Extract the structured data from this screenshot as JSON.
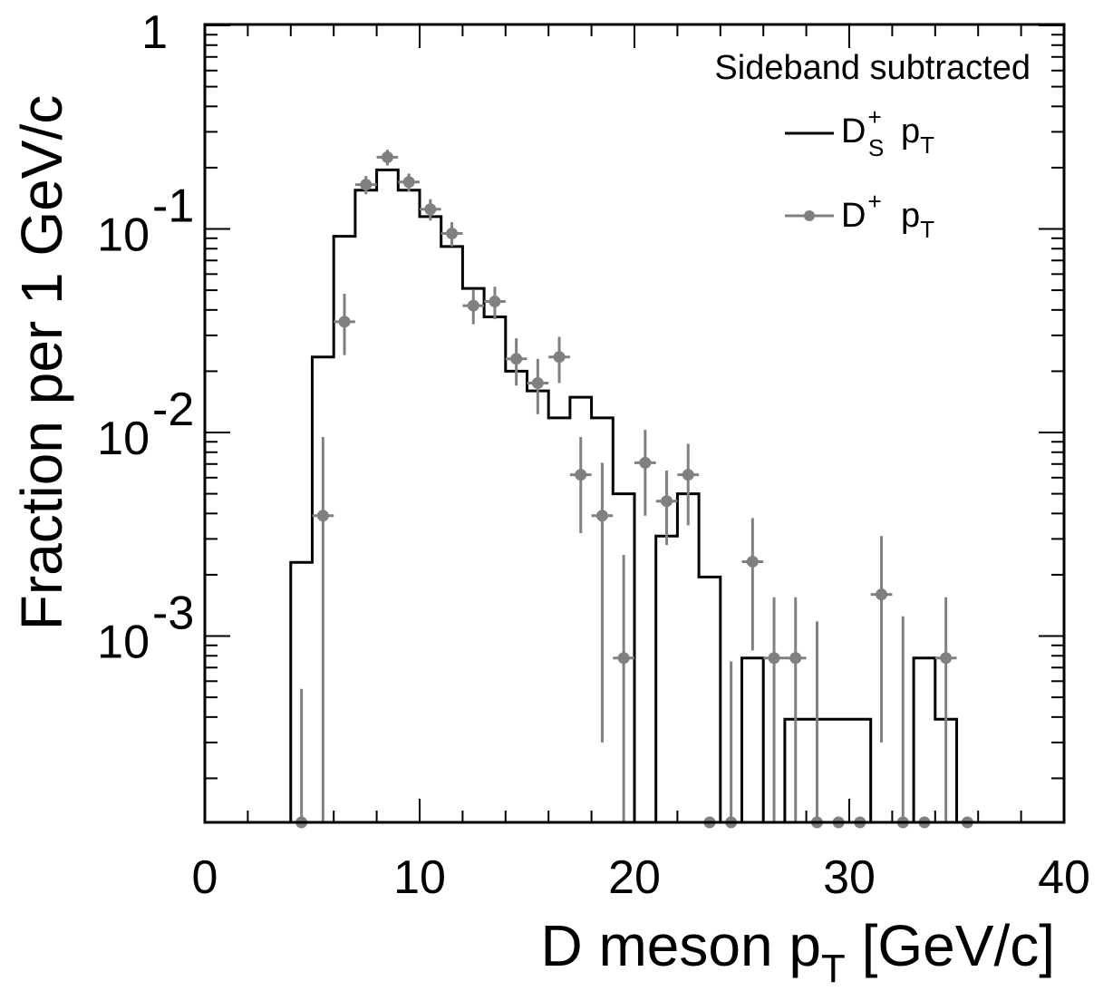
{
  "chart_data": {
    "type": "histogram+scatter",
    "xlabel_main": "D meson p",
    "xlabel_sub": "T",
    "xlabel_unit": " [GeV/c]",
    "ylabel": "Fraction per 1 GeV/c",
    "xlim": [
      0,
      40
    ],
    "ylim": [
      0.00012,
      1
    ],
    "yscale": "log",
    "x_ticks": [
      "0",
      "10",
      "20",
      "30",
      "40"
    ],
    "y_ticks": [
      {
        "value": 1,
        "base": "1",
        "exp": ""
      },
      {
        "value": 0.1,
        "base": "10",
        "exp": "-1"
      },
      {
        "value": 0.01,
        "base": "10",
        "exp": "-2"
      },
      {
        "value": 0.001,
        "base": "10",
        "exp": "-3"
      }
    ],
    "legend": {
      "header": "Sideband subtracted",
      "placement": "top-right",
      "entries": [
        {
          "base": "D",
          "sup": "+",
          "sub": "S",
          "tail": "p",
          "tail_sub": "T",
          "style": "line"
        },
        {
          "base": "D",
          "sup": "+",
          "sub": "",
          "tail": "p",
          "tail_sub": "T",
          "style": "marker"
        }
      ]
    },
    "series": [
      {
        "style": "histogram",
        "color": "#000000",
        "bins": [
          {
            "x0": 4,
            "x1": 5,
            "y": 0.0023
          },
          {
            "x0": 5,
            "x1": 6,
            "y": 0.0235
          },
          {
            "x0": 6,
            "x1": 7,
            "y": 0.092
          },
          {
            "x0": 7,
            "x1": 8,
            "y": 0.155
          },
          {
            "x0": 8,
            "x1": 9,
            "y": 0.195
          },
          {
            "x0": 9,
            "x1": 10,
            "y": 0.155
          },
          {
            "x0": 10,
            "x1": 11,
            "y": 0.115
          },
          {
            "x0": 11,
            "x1": 12,
            "y": 0.082
          },
          {
            "x0": 12,
            "x1": 13,
            "y": 0.051
          },
          {
            "x0": 13,
            "x1": 14,
            "y": 0.037
          },
          {
            "x0": 14,
            "x1": 15,
            "y": 0.02
          },
          {
            "x0": 15,
            "x1": 16,
            "y": 0.016
          },
          {
            "x0": 16,
            "x1": 17,
            "y": 0.0118
          },
          {
            "x0": 17,
            "x1": 18,
            "y": 0.0149
          },
          {
            "x0": 18,
            "x1": 19,
            "y": 0.0118
          },
          {
            "x0": 19,
            "x1": 20,
            "y": 0.005
          },
          {
            "x0": 20,
            "x1": 21,
            "y": 0
          },
          {
            "x0": 21,
            "x1": 22,
            "y": 0.0031
          },
          {
            "x0": 22,
            "x1": 23,
            "y": 0.005
          },
          {
            "x0": 23,
            "x1": 24,
            "y": 0.00195
          },
          {
            "x0": 24,
            "x1": 25,
            "y": 0
          },
          {
            "x0": 25,
            "x1": 26,
            "y": 0.00078
          },
          {
            "x0": 26,
            "x1": 27,
            "y": 0
          },
          {
            "x0": 27,
            "x1": 31,
            "y": 0.00039
          },
          {
            "x0": 31,
            "x1": 33,
            "y": 0
          },
          {
            "x0": 33,
            "x1": 34,
            "y": 0.00078
          },
          {
            "x0": 34,
            "x1": 35,
            "y": 0.00039
          },
          {
            "x0": 35,
            "x1": 36,
            "y": 0
          }
        ]
      },
      {
        "style": "points",
        "color": "#808080",
        "points": [
          {
            "x": 4.5,
            "y": 0,
            "ylo": 0,
            "yhi": 0.00055
          },
          {
            "x": 5.5,
            "y": 0.0039,
            "ylo": 0,
            "yhi": 0.0095
          },
          {
            "x": 6.5,
            "y": 0.035,
            "ylo": 0.024,
            "yhi": 0.048
          },
          {
            "x": 7.5,
            "y": 0.165,
            "ylo": 0.148,
            "yhi": 0.182
          },
          {
            "x": 8.5,
            "y": 0.225,
            "ylo": 0.205,
            "yhi": 0.245
          },
          {
            "x": 9.5,
            "y": 0.17,
            "ylo": 0.153,
            "yhi": 0.187
          },
          {
            "x": 10.5,
            "y": 0.125,
            "ylo": 0.11,
            "yhi": 0.14
          },
          {
            "x": 11.5,
            "y": 0.095,
            "ylo": 0.082,
            "yhi": 0.108
          },
          {
            "x": 12.5,
            "y": 0.042,
            "ylo": 0.034,
            "yhi": 0.05
          },
          {
            "x": 13.5,
            "y": 0.044,
            "ylo": 0.036,
            "yhi": 0.052
          },
          {
            "x": 14.5,
            "y": 0.023,
            "ylo": 0.017,
            "yhi": 0.029
          },
          {
            "x": 15.5,
            "y": 0.0175,
            "ylo": 0.0123,
            "yhi": 0.023
          },
          {
            "x": 16.5,
            "y": 0.0235,
            "ylo": 0.0175,
            "yhi": 0.0295
          },
          {
            "x": 17.5,
            "y": 0.0062,
            "ylo": 0.0032,
            "yhi": 0.0095
          },
          {
            "x": 18.5,
            "y": 0.0039,
            "ylo": 0.0003,
            "yhi": 0.0071
          },
          {
            "x": 19.5,
            "y": 0.00078,
            "ylo": 0,
            "yhi": 0.0025
          },
          {
            "x": 20.5,
            "y": 0.0071,
            "ylo": 0.0039,
            "yhi": 0.0103
          },
          {
            "x": 21.5,
            "y": 0.0046,
            "ylo": 0.0028,
            "yhi": 0.0065
          },
          {
            "x": 22.5,
            "y": 0.0062,
            "ylo": 0.0035,
            "yhi": 0.0088
          },
          {
            "x": 23.5,
            "y": 0,
            "ylo": 0,
            "yhi": 0
          },
          {
            "x": 24.5,
            "y": 0,
            "ylo": 0,
            "yhi": 0.00075
          },
          {
            "x": 25.5,
            "y": 0.00232,
            "ylo": 0.00085,
            "yhi": 0.0038
          },
          {
            "x": 26.5,
            "y": 0.00078,
            "ylo": 0,
            "yhi": 0.00155
          },
          {
            "x": 27.5,
            "y": 0.00078,
            "ylo": 0,
            "yhi": 0.00155
          },
          {
            "x": 28.5,
            "y": 0,
            "ylo": 0,
            "yhi": 0.00118
          },
          {
            "x": 29.5,
            "y": 0,
            "ylo": 0,
            "yhi": 0
          },
          {
            "x": 30.5,
            "y": 0,
            "ylo": 0,
            "yhi": 0
          },
          {
            "x": 31.5,
            "y": 0.0016,
            "ylo": 0.0003,
            "yhi": 0.0031
          },
          {
            "x": 32.5,
            "y": 0,
            "ylo": 0,
            "yhi": 0.00125
          },
          {
            "x": 33.5,
            "y": 0,
            "ylo": 0,
            "yhi": 0
          },
          {
            "x": 34.5,
            "y": 0.00078,
            "ylo": 0,
            "yhi": 0.00155
          },
          {
            "x": 35.5,
            "y": 0,
            "ylo": 0,
            "yhi": 0
          }
        ]
      }
    ]
  }
}
